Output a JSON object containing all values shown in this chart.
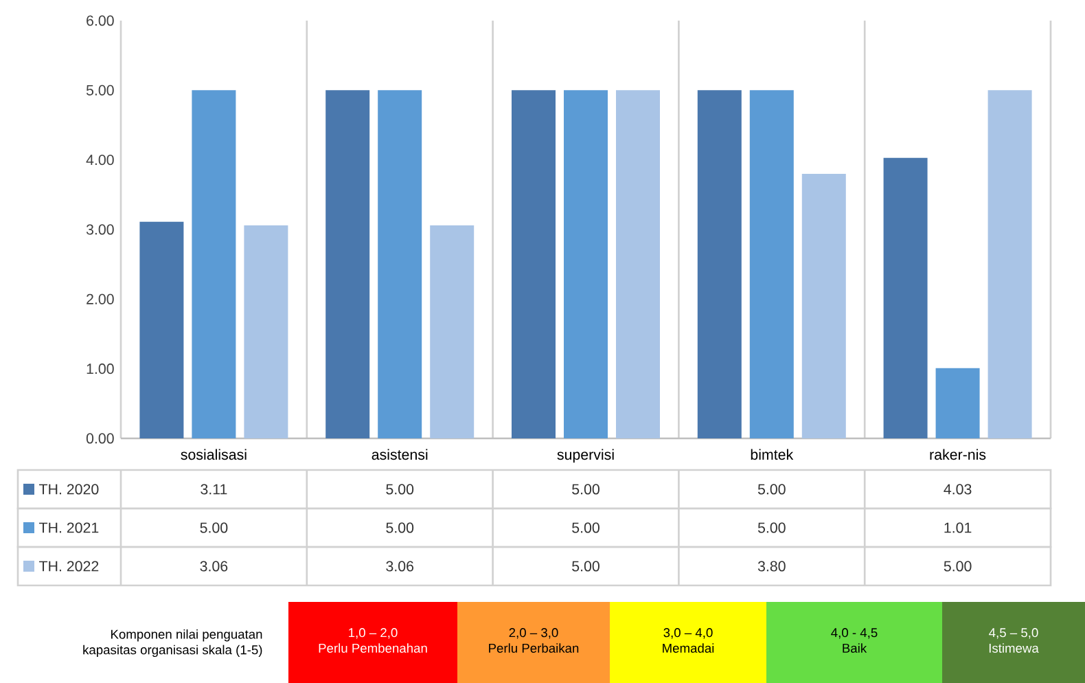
{
  "chart_data": {
    "type": "bar",
    "categories": [
      "sosialisasi",
      "asistensi",
      "supervisi",
      "bimtek",
      "raker-nis"
    ],
    "series": [
      {
        "name": "TH. 2020",
        "color": "#4a78ad",
        "values": [
          3.11,
          5.0,
          5.0,
          5.0,
          4.03
        ],
        "value_labels": [
          "3.11",
          "5.00",
          "5.00",
          "5.00",
          "4.03"
        ]
      },
      {
        "name": "TH. 2021",
        "color": "#5b9bd5",
        "values": [
          5.0,
          5.0,
          5.0,
          5.0,
          1.01
        ],
        "value_labels": [
          "5.00",
          "5.00",
          "5.00",
          "5.00",
          "1.01"
        ]
      },
      {
        "name": "TH. 2022",
        "color": "#a9c4e6",
        "values": [
          3.06,
          3.06,
          5.0,
          3.8,
          5.0
        ],
        "value_labels": [
          "3.06",
          "3.06",
          "5.00",
          "3.80",
          "5.00"
        ]
      }
    ],
    "ylim": [
      0,
      6
    ],
    "yticks": [
      {
        "value": 0,
        "label": "0.00"
      },
      {
        "value": 1,
        "label": "1.00"
      },
      {
        "value": 2,
        "label": "2.00"
      },
      {
        "value": 3,
        "label": "3.00"
      },
      {
        "value": 4,
        "label": "4.00"
      },
      {
        "value": 5,
        "label": "5.00"
      },
      {
        "value": 6,
        "label": "6.00"
      }
    ],
    "grid": "x",
    "legend": "bottom left",
    "annotations": [
      "Komponen nilai penguatan",
      "kapasitas organisasi skala (1-5)",
      "1,0 – 2,0",
      "Perlu Pembenahan",
      "2,0 – 3,0",
      "Perlu Perbaikan",
      "3,0 – 4,0",
      "Memadai",
      "4,0 - 4,5",
      "Baik",
      "4,5 – 5,0",
      "Istimewa"
    ]
  }
}
